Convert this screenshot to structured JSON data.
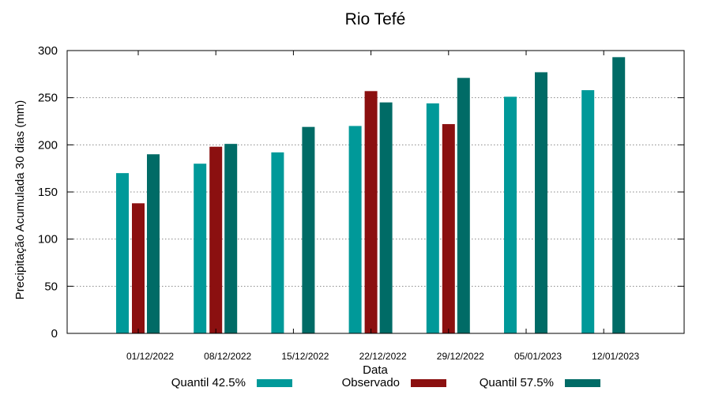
{
  "chart_data": {
    "type": "bar",
    "title": "Rio Tefé",
    "xlabel": "Data",
    "ylabel": "Precipitação Acumulada 30 dias (mm)",
    "ylim": [
      0,
      300
    ],
    "yticks": [
      0,
      50,
      100,
      150,
      200,
      250,
      300
    ],
    "grid": true,
    "legend_position": "bottom",
    "categories": [
      "01/12/2022",
      "08/12/2022",
      "15/12/2022",
      "22/12/2022",
      "29/12/2022",
      "05/01/2023",
      "12/01/2023"
    ],
    "series": [
      {
        "name": "Quantil 42.5%",
        "color": "#009999",
        "values": [
          170,
          180,
          192,
          220,
          244,
          251,
          258
        ]
      },
      {
        "name": "Observado",
        "color": "#8b1010",
        "values": [
          138,
          198,
          null,
          257,
          222,
          null,
          null
        ]
      },
      {
        "name": "Quantil 57.5%",
        "color": "#006b66",
        "values": [
          190,
          201,
          219,
          245,
          271,
          277,
          293
        ]
      }
    ]
  }
}
